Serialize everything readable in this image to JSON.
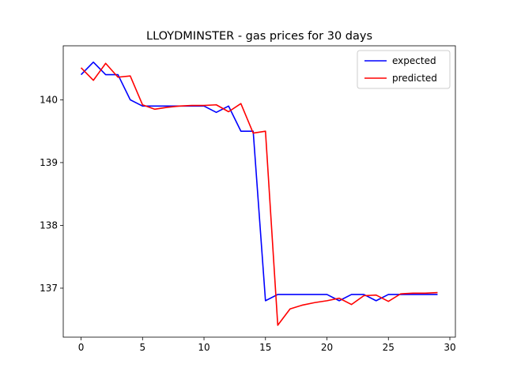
{
  "chart_data": {
    "type": "line",
    "title": "LLOYDMINSTER - gas prices for 30 days",
    "xlabel": "",
    "ylabel": "",
    "xlim": [
      -1.45,
      30.45
    ],
    "ylim": [
      136.22,
      140.86
    ],
    "xticks": [
      0,
      5,
      10,
      15,
      20,
      25,
      30
    ],
    "yticks": [
      137,
      138,
      139,
      140
    ],
    "grid": false,
    "legend_position": "top-right",
    "x": [
      0,
      1,
      2,
      3,
      4,
      5,
      6,
      7,
      8,
      9,
      10,
      11,
      12,
      13,
      14,
      15,
      16,
      17,
      18,
      19,
      20,
      21,
      22,
      23,
      24,
      25,
      26,
      27,
      28,
      29
    ],
    "series": [
      {
        "name": "expected",
        "color": "#0000ff",
        "values": [
          140.4,
          140.6,
          140.4,
          140.4,
          140.0,
          139.9,
          139.9,
          139.9,
          139.9,
          139.9,
          139.9,
          139.8,
          139.9,
          139.5,
          139.5,
          136.8,
          136.9,
          136.9,
          136.9,
          136.9,
          136.9,
          136.8,
          136.9,
          136.9,
          136.8,
          136.9,
          136.9,
          136.9,
          136.9,
          136.9
        ]
      },
      {
        "name": "predicted",
        "color": "#ff0000",
        "values": [
          140.51,
          140.31,
          140.58,
          140.36,
          140.38,
          139.92,
          139.85,
          139.88,
          139.9,
          139.91,
          139.91,
          139.92,
          139.81,
          139.94,
          139.47,
          139.5,
          136.41,
          136.67,
          136.73,
          136.77,
          136.8,
          136.84,
          136.74,
          136.88,
          136.89,
          136.79,
          136.91,
          136.92,
          136.92,
          136.93
        ]
      }
    ]
  }
}
